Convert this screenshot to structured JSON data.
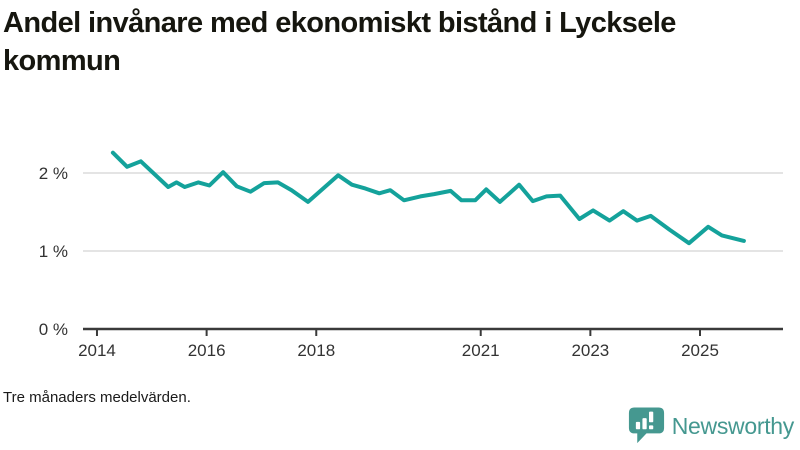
{
  "header": {
    "title": "Andel invånare med ekonomiskt bistånd i Lycksele kommun"
  },
  "footer": {
    "note": "Tre månaders medelvärden.",
    "brand": "Newsworthy",
    "brand_icon": "speech-bubble-bar-chart-exclamation"
  },
  "colors": {
    "line": "#14a29b",
    "grid": "#dcdcdc",
    "axis": "#3a3a3a",
    "text": "#333333",
    "title": "#16160f",
    "brand": "#459890",
    "background": "#ffffff"
  },
  "chart_data": {
    "type": "line",
    "title": "Andel invånare med ekonomiskt bistånd i Lycksele kommun",
    "subtitle_note": "Tre månaders medelvärden.",
    "unit": "%",
    "grid": "horizontal",
    "legend": "none",
    "xlim": [
      2013.75,
      2026.5
    ],
    "ylim": [
      0,
      2.4
    ],
    "x_ticks": [
      2014,
      2016,
      2018,
      2021,
      2023,
      2025
    ],
    "y_ticks": [
      {
        "value": 0,
        "label": "0 %"
      },
      {
        "value": 1,
        "label": "1 %"
      },
      {
        "value": 2,
        "label": "2 %"
      }
    ],
    "series": [
      {
        "name": "Andel invånare med ekonomiskt bistånd",
        "points": [
          [
            2014.29,
            2.26
          ],
          [
            2014.55,
            2.08
          ],
          [
            2014.8,
            2.15
          ],
          [
            2015.3,
            1.82
          ],
          [
            2015.45,
            1.88
          ],
          [
            2015.6,
            1.82
          ],
          [
            2015.85,
            1.88
          ],
          [
            2016.05,
            1.84
          ],
          [
            2016.3,
            2.01
          ],
          [
            2016.55,
            1.83
          ],
          [
            2016.8,
            1.76
          ],
          [
            2017.05,
            1.87
          ],
          [
            2017.3,
            1.88
          ],
          [
            2017.55,
            1.78
          ],
          [
            2017.85,
            1.63
          ],
          [
            2018.4,
            1.97
          ],
          [
            2018.65,
            1.85
          ],
          [
            2018.9,
            1.8
          ],
          [
            2019.15,
            1.74
          ],
          [
            2019.35,
            1.78
          ],
          [
            2019.6,
            1.65
          ],
          [
            2019.9,
            1.7
          ],
          [
            2020.15,
            1.73
          ],
          [
            2020.45,
            1.77
          ],
          [
            2020.65,
            1.65
          ],
          [
            2020.9,
            1.65
          ],
          [
            2021.1,
            1.79
          ],
          [
            2021.35,
            1.63
          ],
          [
            2021.7,
            1.85
          ],
          [
            2021.95,
            1.64
          ],
          [
            2022.2,
            1.7
          ],
          [
            2022.45,
            1.71
          ],
          [
            2022.8,
            1.41
          ],
          [
            2023.05,
            1.52
          ],
          [
            2023.35,
            1.39
          ],
          [
            2023.6,
            1.51
          ],
          [
            2023.85,
            1.39
          ],
          [
            2024.1,
            1.45
          ],
          [
            2024.45,
            1.27
          ],
          [
            2024.8,
            1.1
          ],
          [
            2025.15,
            1.31
          ],
          [
            2025.4,
            1.2
          ],
          [
            2025.8,
            1.13
          ]
        ]
      }
    ]
  }
}
